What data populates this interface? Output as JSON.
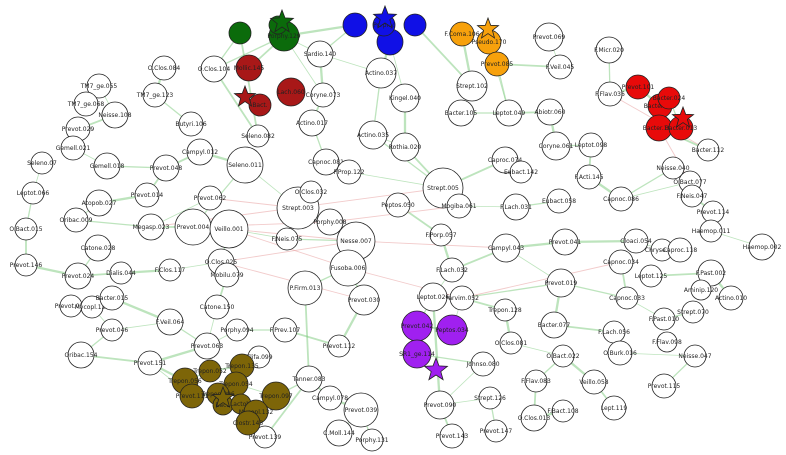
{
  "colors": {
    "white": "#ffffff",
    "green": "#0b6b0b",
    "blue": "#1010e6",
    "orange": "#f7a10c",
    "red": "#e80a0a",
    "darkred": "#a81818",
    "purple": "#a020f0",
    "olive": "#7d6508",
    "edge_pos": "#6cc36c",
    "edge_neg": "#e8a0a0"
  },
  "nodes": [
    {
      "id": "n_pgl",
      "label": "Porphy.129",
      "color": "green"
    },
    {
      "id": "n_g2",
      "label": "",
      "color": "green"
    },
    {
      "id": "n_g3",
      "label": "",
      "color": "green"
    },
    {
      "id": "n_b1",
      "label": "",
      "color": "blue"
    },
    {
      "id": "n_b2",
      "label": "",
      "color": "blue"
    },
    {
      "id": "n_b3",
      "label": "Porphy.",
      "color": "blue"
    },
    {
      "id": "n_b4",
      "label": "",
      "color": "blue"
    },
    {
      "id": "n_o1",
      "label": "F.Coma.106",
      "color": "orange"
    },
    {
      "id": "n_o2",
      "label": "Pseudo.170",
      "color": "orange"
    },
    {
      "id": "n_o3",
      "label": "Prevot.085",
      "color": "orange"
    },
    {
      "id": "n_r1",
      "label": "Prevot.101",
      "color": "red"
    },
    {
      "id": "n_r2",
      "label": "Bacter.064",
      "color": "red"
    },
    {
      "id": "n_r3",
      "label": "Bacter.024",
      "color": "red"
    },
    {
      "id": "n_r4",
      "label": "Bacter.100",
      "color": "red"
    },
    {
      "id": "n_r5",
      "label": "Bacter.013",
      "color": "red"
    },
    {
      "id": "n_dr1",
      "label": "Mollic.145",
      "color": "darkred"
    },
    {
      "id": "n_dr2",
      "label": "Bact.",
      "color": "darkred"
    },
    {
      "id": "n_dr3",
      "label": "Lach.060",
      "color": "darkred"
    },
    {
      "id": "n_p1",
      "label": "Prevot.042",
      "color": "purple"
    },
    {
      "id": "n_p2",
      "label": "Peptos.034",
      "color": "purple"
    },
    {
      "id": "n_p3",
      "label": "SR1_ge.114",
      "color": "purple"
    },
    {
      "id": "n_ol1",
      "label": "Trepon.056",
      "color": "olive"
    },
    {
      "id": "n_ol2",
      "label": "Trepon.052",
      "color": "olive"
    },
    {
      "id": "n_ol3",
      "label": "Trepon.135",
      "color": "olive"
    },
    {
      "id": "n_ol4",
      "label": "Trepon.054",
      "color": "olive"
    },
    {
      "id": "n_ol5",
      "label": "Prevot.111",
      "color": "olive"
    },
    {
      "id": "n_ol6",
      "label": "Trepon.096",
      "color": "olive"
    },
    {
      "id": "n_ol7",
      "label": "Trepon.097",
      "color": "olive"
    },
    {
      "id": "n_ol8",
      "label": "Bact.",
      "color": "olive"
    },
    {
      "id": "n_ol9",
      "label": "Lactob.",
      "color": "olive"
    },
    {
      "id": "n_ol10",
      "label": "Mycopl.132",
      "color": "olive"
    },
    {
      "id": "n_ol11",
      "label": "Clostr.143",
      "color": "olive"
    },
    {
      "id": "w1",
      "label": "O.Clos.084",
      "color": "white"
    },
    {
      "id": "w2",
      "label": "O.Clos.104",
      "color": "white"
    },
    {
      "id": "w3",
      "label": "TM7_ge.055",
      "color": "white"
    },
    {
      "id": "w4",
      "label": "TM7_ge.123",
      "color": "white"
    },
    {
      "id": "w5",
      "label": "TM7_ge.068",
      "color": "white"
    },
    {
      "id": "w6",
      "label": "Neisse.108",
      "color": "white"
    },
    {
      "id": "w7",
      "label": "Butyri.106",
      "color": "white"
    },
    {
      "id": "w8",
      "label": "Prevot.029",
      "color": "white"
    },
    {
      "id": "w9",
      "label": "Gemell.021",
      "color": "white"
    },
    {
      "id": "w10",
      "label": "Campyl.012",
      "color": "white"
    },
    {
      "id": "w11",
      "label": "Seleno.07",
      "color": "white"
    },
    {
      "id": "w12",
      "label": "Leptot.066",
      "color": "white"
    },
    {
      "id": "w13",
      "label": "Gemell.018",
      "color": "white"
    },
    {
      "id": "w14",
      "label": "Prevot.048",
      "color": "white"
    },
    {
      "id": "w15",
      "label": "Seleno.011",
      "color": "white"
    },
    {
      "id": "w16",
      "label": "Seleno.082",
      "color": "white"
    },
    {
      "id": "w17",
      "label": "Prevot.014",
      "color": "white"
    },
    {
      "id": "w18",
      "label": "Atopob.027",
      "color": "white"
    },
    {
      "id": "w19",
      "label": "Prevot.062",
      "color": "white"
    },
    {
      "id": "w20",
      "label": "Oribac.009",
      "color": "white"
    },
    {
      "id": "w21",
      "label": "Megasp.023",
      "color": "white"
    },
    {
      "id": "w22",
      "label": "O.Bact.015",
      "color": "white"
    },
    {
      "id": "w23",
      "label": "Prevot.004",
      "color": "white"
    },
    {
      "id": "w24",
      "label": "Catone.028",
      "color": "white"
    },
    {
      "id": "w25",
      "label": "Prevot.146",
      "color": "white"
    },
    {
      "id": "w26",
      "label": "Prevot.024",
      "color": "white"
    },
    {
      "id": "w27",
      "label": "Dialis.044",
      "color": "white"
    },
    {
      "id": "w28",
      "label": "F.Clos.117",
      "color": "white"
    },
    {
      "id": "w29",
      "label": "O.Clos.025",
      "color": "white"
    },
    {
      "id": "w30",
      "label": "Mobilu.079",
      "color": "white"
    },
    {
      "id": "w31",
      "label": "Prevot.053",
      "color": "white"
    },
    {
      "id": "w32",
      "label": "Mycopl.127",
      "color": "white"
    },
    {
      "id": "w33",
      "label": "Bacter.015",
      "color": "white"
    },
    {
      "id": "w34",
      "label": "Prevot.046",
      "color": "white"
    },
    {
      "id": "w35",
      "label": "F.Veil.064",
      "color": "white"
    },
    {
      "id": "w36",
      "label": "Catone.150",
      "color": "white"
    },
    {
      "id": "w37",
      "label": "Oribac.154",
      "color": "white"
    },
    {
      "id": "w38",
      "label": "Prevot.063",
      "color": "white"
    },
    {
      "id": "w39",
      "label": "Porphy.094",
      "color": "white"
    },
    {
      "id": "w40",
      "label": "F.Prev.107",
      "color": "white"
    },
    {
      "id": "w41",
      "label": "Prevot.151",
      "color": "white"
    },
    {
      "id": "w42",
      "label": "Filifa.099",
      "color": "white"
    },
    {
      "id": "w43",
      "label": "Sardio.140",
      "color": "white"
    },
    {
      "id": "w44",
      "label": "Coryne.073",
      "color": "white"
    },
    {
      "id": "w45",
      "label": "Actino.037",
      "color": "white"
    },
    {
      "id": "w46",
      "label": "Kingel.040",
      "color": "white"
    },
    {
      "id": "w47",
      "label": "Actino.017",
      "color": "white"
    },
    {
      "id": "w48",
      "label": "Actino.035",
      "color": "white"
    },
    {
      "id": "w49",
      "label": "Rothia.020",
      "color": "white"
    },
    {
      "id": "w50",
      "label": "Capnoc.081",
      "color": "white"
    },
    {
      "id": "w51",
      "label": "F.Prop.122",
      "color": "white"
    },
    {
      "id": "w52",
      "label": "Strept.003",
      "color": "white"
    },
    {
      "id": "w53",
      "label": "O.Clos.032",
      "color": "white"
    },
    {
      "id": "w54",
      "label": "Veillo.001",
      "color": "white"
    },
    {
      "id": "w55",
      "label": "F.Neis.075",
      "color": "white"
    },
    {
      "id": "w56",
      "label": "Porphy.008",
      "color": "white"
    },
    {
      "id": "w57",
      "label": "Strept.005",
      "color": "white"
    },
    {
      "id": "w58",
      "label": "Peptos.050",
      "color": "white"
    },
    {
      "id": "w59",
      "label": "Nesse.007",
      "color": "white"
    },
    {
      "id": "w60",
      "label": "F.Porp.057",
      "color": "white"
    },
    {
      "id": "w61",
      "label": "Fusoba.006",
      "color": "white"
    },
    {
      "id": "w62",
      "label": "F.Lach.032",
      "color": "white"
    },
    {
      "id": "w63",
      "label": "P.Firm.013",
      "color": "white"
    },
    {
      "id": "w64",
      "label": "Prevot.030",
      "color": "white"
    },
    {
      "id": "w65",
      "label": "Prevot.112",
      "color": "white"
    },
    {
      "id": "w66",
      "label": "Tanner.083",
      "color": "white"
    },
    {
      "id": "w67",
      "label": "Campyl.078",
      "color": "white"
    },
    {
      "id": "w68",
      "label": "Prevot.039",
      "color": "white"
    },
    {
      "id": "w69",
      "label": "C.Moll.144",
      "color": "white"
    },
    {
      "id": "w70",
      "label": "Prevot.139",
      "color": "white"
    },
    {
      "id": "w71",
      "label": "Porphy.131",
      "color": "white"
    },
    {
      "id": "w72",
      "label": "Strept.102",
      "color": "white"
    },
    {
      "id": "w73",
      "label": "Bacter.105",
      "color": "white"
    },
    {
      "id": "w74",
      "label": "Leptot.049",
      "color": "white"
    },
    {
      "id": "w75",
      "label": "Prevot.069",
      "color": "white"
    },
    {
      "id": "w76",
      "label": "F.Micr.020",
      "color": "white"
    },
    {
      "id": "w77",
      "label": "F.Veil.045",
      "color": "white"
    },
    {
      "id": "w78",
      "label": "F.Flav.036",
      "color": "white"
    },
    {
      "id": "w79",
      "label": "Abiotr.060",
      "color": "white"
    },
    {
      "id": "w80",
      "label": "Caproc.074",
      "color": "white"
    },
    {
      "id": "w81",
      "label": "Coryne.061",
      "color": "white"
    },
    {
      "id": "w82",
      "label": "Leptot.098",
      "color": "white"
    },
    {
      "id": "w83",
      "label": "Bacter.112",
      "color": "white"
    },
    {
      "id": "w84",
      "label": "Eubact.142",
      "color": "white"
    },
    {
      "id": "w85",
      "label": "F.Acti.145",
      "color": "white"
    },
    {
      "id": "w86",
      "label": "Mogiba.061",
      "color": "white"
    },
    {
      "id": "w87",
      "label": "F.Lach.031",
      "color": "white"
    },
    {
      "id": "w88",
      "label": "Eubact.058",
      "color": "white"
    },
    {
      "id": "w89",
      "label": "Capnoc.086",
      "color": "white"
    },
    {
      "id": "w90",
      "label": "Neisse.040",
      "color": "white"
    },
    {
      "id": "w91",
      "label": "O.Bact.077",
      "color": "white"
    },
    {
      "id": "w92",
      "label": "F.Neis.047",
      "color": "white"
    },
    {
      "id": "w93",
      "label": "Prevot.114",
      "color": "white"
    },
    {
      "id": "w94",
      "label": "Haemop.011",
      "color": "white"
    },
    {
      "id": "w95",
      "label": "Haemop.002",
      "color": "white"
    },
    {
      "id": "w96",
      "label": "Campyl.043",
      "color": "white"
    },
    {
      "id": "w97",
      "label": "Prevot.041",
      "color": "white"
    },
    {
      "id": "w98",
      "label": "Cloaci.054",
      "color": "white"
    },
    {
      "id": "w99",
      "label": "Chryse.036",
      "color": "white"
    },
    {
      "id": "w100",
      "label": "Caproc.118",
      "color": "white"
    },
    {
      "id": "w101",
      "label": "Prevot.019",
      "color": "white"
    },
    {
      "id": "w102",
      "label": "Capnoc.034",
      "color": "white"
    },
    {
      "id": "w103",
      "label": "Leptot.125",
      "color": "white"
    },
    {
      "id": "w104",
      "label": "F.Past.002",
      "color": "white"
    },
    {
      "id": "w105",
      "label": "Parvim.052",
      "color": "white"
    },
    {
      "id": "w106",
      "label": "Leptot.026",
      "color": "white"
    },
    {
      "id": "w107",
      "label": "Trepon.128",
      "color": "white"
    },
    {
      "id": "w108",
      "label": "Capnoc.033",
      "color": "white"
    },
    {
      "id": "w109",
      "label": "Aminip.120",
      "color": "white"
    },
    {
      "id": "w110",
      "label": "Actino.010",
      "color": "white"
    },
    {
      "id": "w111",
      "label": "F.Past.010",
      "color": "white"
    },
    {
      "id": "w112",
      "label": "Strept.070",
      "color": "white"
    },
    {
      "id": "w113",
      "label": "Bacter.077",
      "color": "white"
    },
    {
      "id": "w114",
      "label": "O.Clos.081",
      "color": "white"
    },
    {
      "id": "w115",
      "label": "F.Lach.056",
      "color": "white"
    },
    {
      "id": "w116",
      "label": "O.Bact.022",
      "color": "white"
    },
    {
      "id": "w117",
      "label": "O.Burk.016",
      "color": "white"
    },
    {
      "id": "w118",
      "label": "F.Flav.098",
      "color": "white"
    },
    {
      "id": "w119",
      "label": "Johnso.080",
      "color": "white"
    },
    {
      "id": "w120",
      "label": "Neisse.047",
      "color": "white"
    },
    {
      "id": "w121",
      "label": "F.Flav.083",
      "color": "white"
    },
    {
      "id": "w122",
      "label": "Veillo.058",
      "color": "white"
    },
    {
      "id": "w123",
      "label": "Prevot.115",
      "color": "white"
    },
    {
      "id": "w124",
      "label": "Prevot.090",
      "color": "white"
    },
    {
      "id": "w125",
      "label": "Strept.126",
      "color": "white"
    },
    {
      "id": "w126",
      "label": "O.Clos.013",
      "color": "white"
    },
    {
      "id": "w127",
      "label": "F.Bact.108",
      "color": "white"
    },
    {
      "id": "w128",
      "label": "Lept.119",
      "color": "white"
    },
    {
      "id": "w129",
      "label": "Prevot.143",
      "color": "white"
    },
    {
      "id": "w130",
      "label": "Prevot.147",
      "color": "white"
    },
    {
      "id": "s_green",
      "label": "",
      "color": "green",
      "shape": "star"
    },
    {
      "id": "s_blue",
      "label": "",
      "color": "blue",
      "shape": "star"
    },
    {
      "id": "s_orange",
      "label": "",
      "color": "orange",
      "shape": "star"
    },
    {
      "id": "s_red",
      "label": "",
      "color": "red",
      "shape": "star"
    },
    {
      "id": "s_darkred",
      "label": "",
      "color": "darkred",
      "shape": "star"
    },
    {
      "id": "s_purple",
      "label": "",
      "color": "purple",
      "shape": "star"
    },
    {
      "id": "s_olive",
      "label": "",
      "color": "olive",
      "shape": "star"
    }
  ]
}
